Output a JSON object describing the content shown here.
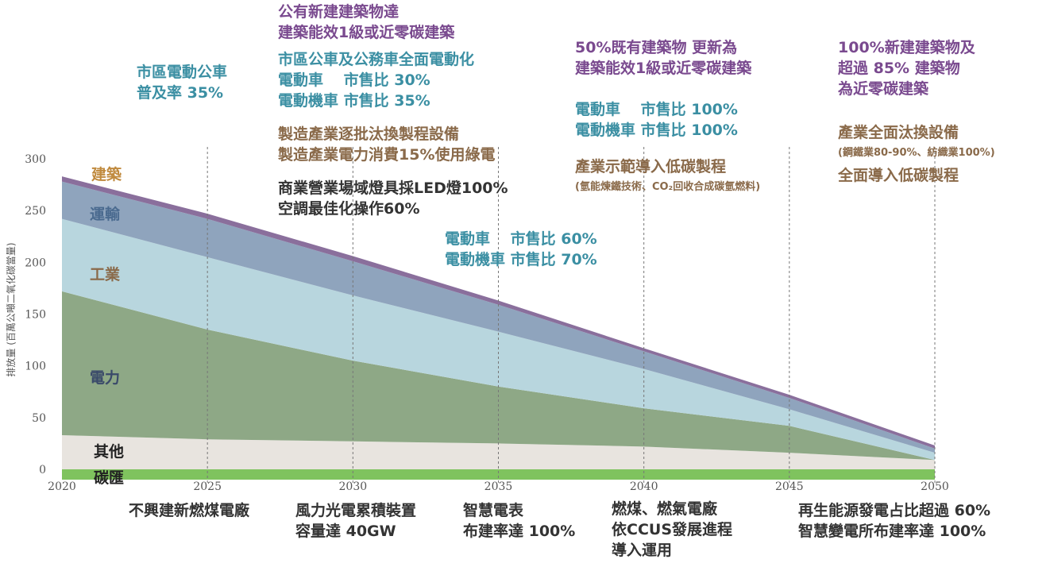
{
  "chart_data": {
    "type": "area",
    "stacked": true,
    "x": [
      2020,
      2025,
      2030,
      2035,
      2040,
      2045,
      2050
    ],
    "x_ticks": [
      "2020",
      "2025",
      "2030",
      "2035",
      "2040",
      "2045",
      "2050"
    ],
    "y_ticks": [
      "300",
      "250",
      "200",
      "150",
      "100",
      "50",
      "0"
    ],
    "ylim": [
      0,
      300
    ],
    "ylabel": "排放量 (百萬公噸二氧化碳當量)",
    "series": [
      {
        "name": "其他",
        "color": "#e8e4df",
        "values": [
          33,
          29,
          27,
          25,
          22,
          16,
          9
        ]
      },
      {
        "name": "電力",
        "color": "#8ea886",
        "values": [
          139,
          106,
          78,
          55,
          37,
          26,
          0
        ]
      },
      {
        "name": "工業",
        "color": "#b8d6de",
        "values": [
          70,
          70,
          63,
          53,
          38,
          16,
          7
        ]
      },
      {
        "name": "運輸",
        "color": "#8fa4bd",
        "values": [
          36,
          37,
          33,
          26,
          17,
          11,
          4
        ]
      },
      {
        "name": "建築",
        "color": "#8a6f9c",
        "values": [
          5,
          5,
          5,
          4,
          3,
          3,
          3
        ]
      },
      {
        "name": "碳匯",
        "color": "#7fc35e",
        "values": [
          -10,
          -10,
          -10,
          -10,
          -10,
          -10,
          -10
        ]
      }
    ],
    "series_label_colors": {
      "建築": "#c08a3e",
      "運輸": "#4a6a8f",
      "工業": "#8a6a4a",
      "電力": "#3a4a6a",
      "其他": "#222222",
      "碳匯": "#222222"
    }
  },
  "annotations_top": {
    "a2025": [
      "市區電動公車",
      "普及率 35%"
    ],
    "a2030_purple": [
      "公有新建建築物達",
      "建築能效1級或近零碳建築"
    ],
    "a2030_teal": [
      "市區公車及公務車全面電動化",
      "電動車　 市售比 30%",
      "電動機車 市售比 35%"
    ],
    "a2030_brown": [
      "製造產業逐批汰換製程設備",
      "製造產業電力消費15%使用綠電"
    ],
    "a2030_dark": [
      "商業營業場域燈具採LED燈100%",
      "空調最佳化操作60%"
    ],
    "a2035": [
      "電動車　 市售比 60%",
      "電動機車 市售比 70%"
    ],
    "a2040_purple": [
      "50%既有建築物 更新為",
      "建築能效1級或近零碳建築"
    ],
    "a2040_teal": [
      "電動車　 市售比 100%",
      "電動機車 市售比 100%"
    ],
    "a2040_brown": "產業示範導入低碳製程",
    "a2040_small": "(氫能煉鐵技術、CO₂回收合成碳氫燃料)",
    "a2050_purple": [
      "100%新建建築物及",
      "超過 85% 建築物",
      "為近零碳建築"
    ],
    "a2050_brown": "產業全面汰換設備",
    "a2050_small": "(鋼鐵業80-90%、紡織業100%)",
    "a2050_brown2": "全面導入低碳製程"
  },
  "annotations_bottom": {
    "b2025": [
      "不興建新燃煤電廠"
    ],
    "b2030": [
      "風力光電累積裝置",
      "容量達 40GW"
    ],
    "b2035": [
      "智慧電表",
      "布建率達 100%"
    ],
    "b2040": [
      "燃煤、燃氣電廠",
      "依CCUS發展進程",
      "導入運用"
    ],
    "b2050": [
      "再生能源發電占比超過 60%",
      "智慧變電所布建率達 100%"
    ]
  }
}
